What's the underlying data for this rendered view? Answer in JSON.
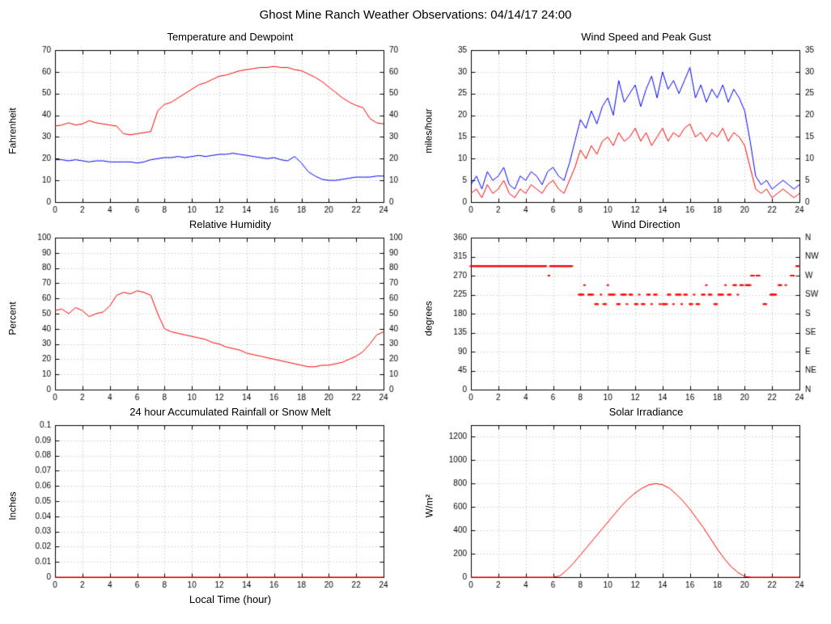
{
  "page": {
    "title": "Ghost Mine Ranch Weather Observations: 04/14/17 24:00"
  },
  "colors": {
    "red": "#ff0000",
    "blue": "#0000ff",
    "grid": "#b8b8b8",
    "border": "#000000"
  },
  "chart_data": [
    {
      "type": "line",
      "title": "Temperature and Dewpoint",
      "ylabel": "Fahrenheit",
      "xlim": [
        0,
        24
      ],
      "xtick": 2,
      "ylim": [
        0,
        70
      ],
      "ytick": 10,
      "right_axis": "mirror",
      "x_step": 0.5,
      "series": [
        {
          "name": "Temperature",
          "color": "#ff0000",
          "y": [
            35,
            35.5,
            36.5,
            35.5,
            36,
            37.5,
            36.5,
            36,
            35.5,
            35,
            31.5,
            31,
            31.5,
            32,
            32.5,
            42,
            45,
            46,
            48,
            50,
            52,
            54,
            55,
            56.5,
            58,
            58.5,
            59.5,
            60.5,
            61,
            61.5,
            62,
            62,
            62.5,
            62,
            62,
            61,
            60.5,
            59,
            57.5,
            55.5,
            53,
            50.5,
            48,
            46,
            44.5,
            43.5,
            38.5,
            36.5,
            36
          ]
        },
        {
          "name": "Dewpoint",
          "color": "#0000ff",
          "y": [
            19.5,
            19.5,
            19,
            19.5,
            19,
            18.5,
            19,
            19,
            18.5,
            18.5,
            18.5,
            18.5,
            18,
            18.5,
            19.5,
            20,
            20.5,
            20.5,
            21,
            20.5,
            21,
            21.5,
            21,
            21.5,
            22,
            22,
            22.5,
            22,
            21.5,
            21,
            20.5,
            20,
            20.5,
            19.5,
            19,
            21,
            18,
            14,
            12,
            10.5,
            10,
            10,
            10.5,
            11,
            11.5,
            11.5,
            11.5,
            12,
            12
          ]
        }
      ]
    },
    {
      "type": "line",
      "title": "Wind Speed and Peak Gust",
      "ylabel": "miles/hour",
      "xlim": [
        0,
        24
      ],
      "xtick": 2,
      "ylim": [
        0,
        35
      ],
      "ytick": 5,
      "right_axis": "mirror",
      "x_step": 0.4,
      "series": [
        {
          "name": "Peak Gust",
          "color": "#0000ff",
          "y": [
            4,
            6,
            3,
            7,
            5,
            6,
            8,
            4,
            3,
            6,
            5,
            7,
            6,
            4,
            7,
            8,
            6,
            5,
            9,
            14,
            19,
            17,
            21,
            18,
            22,
            24,
            20,
            28,
            23,
            25,
            27,
            22,
            26,
            29,
            24,
            30,
            26,
            28,
            25,
            28,
            31,
            24,
            27,
            23,
            26,
            24,
            27,
            23,
            26,
            24,
            21,
            14,
            6,
            4,
            5,
            3,
            4,
            5,
            4,
            3,
            4
          ]
        },
        {
          "name": "Wind Speed",
          "color": "#ff0000",
          "y": [
            2,
            3,
            1,
            4,
            2,
            3,
            5,
            2,
            1,
            3,
            2,
            4,
            3,
            2,
            4,
            5,
            3,
            2,
            5,
            8,
            12,
            10,
            13,
            11,
            14,
            15,
            13,
            16,
            14,
            15,
            17,
            14,
            16,
            13,
            15,
            17,
            14,
            16,
            15,
            17,
            18,
            15,
            16,
            14,
            16,
            15,
            17,
            14,
            16,
            15,
            13,
            8,
            3,
            2,
            3,
            1,
            2,
            3,
            2,
            1,
            2
          ]
        }
      ]
    },
    {
      "type": "line",
      "title": "Relative Humidity",
      "ylabel": "Percent",
      "xlim": [
        0,
        24
      ],
      "xtick": 2,
      "ylim": [
        0,
        100
      ],
      "ytick": 10,
      "right_axis": "mirror",
      "x_step": 0.5,
      "series": [
        {
          "name": "Relative Humidity",
          "color": "#ff0000",
          "y": [
            52,
            53,
            50,
            54,
            52,
            48,
            50,
            51,
            55,
            62,
            64,
            63,
            65,
            64,
            62,
            50,
            40,
            38,
            37,
            36,
            35,
            34,
            33,
            31,
            30,
            28,
            27,
            26,
            24,
            23,
            22,
            21,
            20,
            19,
            18,
            17,
            16,
            15,
            15,
            16,
            16,
            17,
            18,
            20,
            22,
            25,
            30,
            36,
            38
          ]
        }
      ]
    },
    {
      "type": "scatter",
      "title": "Wind Direction",
      "ylabel": "degrees",
      "xlim": [
        0,
        24
      ],
      "xtick": 2,
      "ylim": [
        0,
        360
      ],
      "ytick": 45,
      "right_axis": "compass",
      "compass": [
        "N",
        "NE",
        "E",
        "SE",
        "S",
        "SW",
        "W",
        "NW",
        "N"
      ],
      "series": [
        {
          "name": "Wind Direction",
          "color": "#ff0000",
          "runs": [
            {
              "from": 0.0,
              "to": 5.5,
              "step": 0.075,
              "dir": 292.5
            },
            {
              "from": 5.7,
              "to": 5.7,
              "step": 1,
              "dir": 270
            },
            {
              "from": 5.8,
              "to": 7.4,
              "step": 0.075,
              "dir": 292.5
            },
            {
              "from": 7.9,
              "to": 8.2,
              "step": 0.075,
              "dir": 225
            },
            {
              "from": 8.3,
              "to": 8.35,
              "step": 0.075,
              "dir": 247.5
            },
            {
              "from": 8.6,
              "to": 8.9,
              "step": 0.075,
              "dir": 225
            },
            {
              "from": 9.1,
              "to": 9.3,
              "step": 0.075,
              "dir": 202.5
            },
            {
              "from": 9.5,
              "to": 9.55,
              "step": 0.075,
              "dir": 225
            },
            {
              "from": 9.7,
              "to": 9.9,
              "step": 0.075,
              "dir": 202.5
            },
            {
              "from": 10.0,
              "to": 10.05,
              "step": 0.075,
              "dir": 247.5
            },
            {
              "from": 10.1,
              "to": 10.5,
              "step": 0.075,
              "dir": 225
            },
            {
              "from": 10.7,
              "to": 10.9,
              "step": 0.075,
              "dir": 202.5
            },
            {
              "from": 11.0,
              "to": 11.3,
              "step": 0.075,
              "dir": 225
            },
            {
              "from": 11.4,
              "to": 11.45,
              "step": 0.075,
              "dir": 202.5
            },
            {
              "from": 11.6,
              "to": 11.8,
              "step": 0.075,
              "dir": 225
            },
            {
              "from": 12.0,
              "to": 12.2,
              "step": 0.075,
              "dir": 202.5
            },
            {
              "from": 12.3,
              "to": 12.35,
              "step": 0.075,
              "dir": 225
            },
            {
              "from": 12.5,
              "to": 12.7,
              "step": 0.075,
              "dir": 202.5
            },
            {
              "from": 12.9,
              "to": 13.1,
              "step": 0.075,
              "dir": 225
            },
            {
              "from": 13.2,
              "to": 13.25,
              "step": 0.075,
              "dir": 202.5
            },
            {
              "from": 13.4,
              "to": 13.6,
              "step": 0.075,
              "dir": 225
            },
            {
              "from": 13.8,
              "to": 13.85,
              "step": 0.075,
              "dir": 202.5
            },
            {
              "from": 14.0,
              "to": 14.3,
              "step": 0.075,
              "dir": 202.5
            },
            {
              "from": 14.4,
              "to": 14.6,
              "step": 0.075,
              "dir": 225
            },
            {
              "from": 14.8,
              "to": 14.85,
              "step": 0.075,
              "dir": 202.5
            },
            {
              "from": 15.0,
              "to": 15.3,
              "step": 0.075,
              "dir": 225
            },
            {
              "from": 15.4,
              "to": 15.45,
              "step": 0.075,
              "dir": 202.5
            },
            {
              "from": 15.6,
              "to": 15.8,
              "step": 0.075,
              "dir": 225
            },
            {
              "from": 16.0,
              "to": 16.2,
              "step": 0.075,
              "dir": 202.5
            },
            {
              "from": 16.3,
              "to": 16.35,
              "step": 0.075,
              "dir": 225
            },
            {
              "from": 16.5,
              "to": 16.7,
              "step": 0.075,
              "dir": 202.5
            },
            {
              "from": 16.9,
              "to": 17.1,
              "step": 0.075,
              "dir": 225
            },
            {
              "from": 17.2,
              "to": 17.25,
              "step": 0.075,
              "dir": 247.5
            },
            {
              "from": 17.4,
              "to": 17.6,
              "step": 0.075,
              "dir": 225
            },
            {
              "from": 17.8,
              "to": 18.0,
              "step": 0.075,
              "dir": 202.5
            },
            {
              "from": 18.1,
              "to": 18.4,
              "step": 0.075,
              "dir": 225
            },
            {
              "from": 18.6,
              "to": 18.65,
              "step": 0.075,
              "dir": 247.5
            },
            {
              "from": 18.8,
              "to": 19.0,
              "step": 0.075,
              "dir": 225
            },
            {
              "from": 19.2,
              "to": 19.4,
              "step": 0.075,
              "dir": 247.5
            },
            {
              "from": 19.5,
              "to": 19.55,
              "step": 0.075,
              "dir": 225
            },
            {
              "from": 19.7,
              "to": 19.9,
              "step": 0.075,
              "dir": 247.5
            },
            {
              "from": 20.1,
              "to": 20.4,
              "step": 0.075,
              "dir": 247.5
            },
            {
              "from": 20.5,
              "to": 20.7,
              "step": 0.075,
              "dir": 270
            },
            {
              "from": 20.9,
              "to": 21.1,
              "step": 0.075,
              "dir": 270
            },
            {
              "from": 21.4,
              "to": 21.6,
              "step": 0.075,
              "dir": 202.5
            },
            {
              "from": 21.9,
              "to": 22.3,
              "step": 0.075,
              "dir": 225
            },
            {
              "from": 22.5,
              "to": 22.7,
              "step": 0.075,
              "dir": 247.5
            },
            {
              "from": 23.0,
              "to": 23.05,
              "step": 0.075,
              "dir": 247.5
            },
            {
              "from": 23.4,
              "to": 23.6,
              "step": 0.075,
              "dir": 270
            },
            {
              "from": 23.8,
              "to": 24.0,
              "step": 0.075,
              "dir": 292.5
            }
          ]
        }
      ]
    },
    {
      "type": "line",
      "title": "24 hour Accumulated Rainfall or Snow Melt",
      "ylabel": "Inches",
      "xlabel": "Local Time (hour)",
      "xlim": [
        0,
        24
      ],
      "xtick": 2,
      "ylim": [
        0,
        0.1
      ],
      "ytick": 0.01,
      "right_axis": "none",
      "series": [
        {
          "name": "Rainfall",
          "color": "#ff0000",
          "x": [
            0,
            24
          ],
          "y": [
            0,
            0
          ]
        }
      ]
    },
    {
      "type": "line",
      "title": "Solar Irradiance",
      "ylabel": "W/m²",
      "xlim": [
        0,
        24
      ],
      "xtick": 2,
      "ylim": [
        0,
        1300
      ],
      "ytick": 200,
      "right_axis": "none",
      "x_step": 0.5,
      "series": [
        {
          "name": "Solar Irradiance",
          "color": "#ff0000",
          "y": [
            0,
            0,
            0,
            0,
            0,
            0,
            0,
            0,
            0,
            0,
            0,
            0,
            0,
            10,
            60,
            120,
            190,
            260,
            330,
            400,
            470,
            540,
            610,
            670,
            720,
            760,
            790,
            800,
            790,
            760,
            710,
            650,
            580,
            500,
            420,
            330,
            240,
            160,
            90,
            40,
            5,
            0,
            0,
            0,
            0,
            0,
            0,
            0,
            0
          ]
        }
      ]
    }
  ]
}
